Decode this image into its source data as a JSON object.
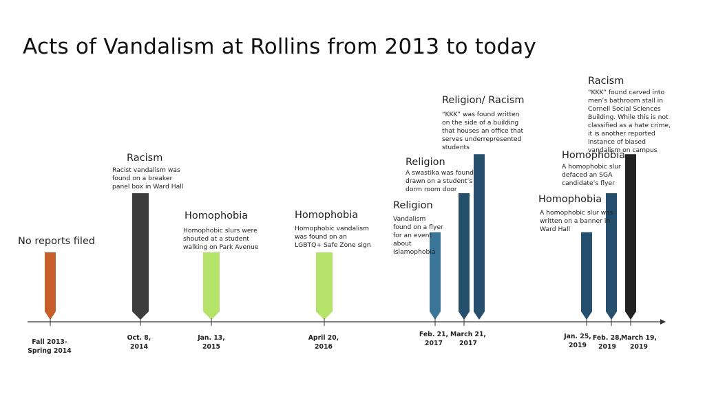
{
  "slide": {
    "title": "Acts of Vandalism at Rollins from 2013 to today"
  },
  "colors": {
    "orange": "#c85f2a",
    "dark_gray": "#3d3d3d",
    "light_green": "#b6e36a",
    "steel_blue": "#3b7597",
    "navy_blue": "#254f6d",
    "black": "#222222",
    "axis": "#333333"
  },
  "events": [
    {
      "date": "Fall 2013-\nSpring 2014",
      "category": "No reports filed",
      "description": "",
      "color": "orange",
      "level": 0.5
    },
    {
      "date": "Oct. 8,\n2014",
      "category": "Racism",
      "description": "Racist vandalism was found on a breaker panel box in Ward Hall",
      "color": "dark_gray",
      "level": 1.0
    },
    {
      "date": "Jan. 13,\n2015",
      "category": "Homophobia",
      "description": "Homophobic slurs were shouted at a student walking on Park Avenue",
      "color": "light_green",
      "level": 0.5
    },
    {
      "date": "April 20,\n2016",
      "category": "Homophobia",
      "description": "Homophobic vandalism was found on an LGBTQ+ Safe Zone sign",
      "color": "light_green",
      "level": 0.5
    },
    {
      "date": "Feb. 21,\n2017",
      "category": "Religion",
      "description": "Vandalism found on a flyer for an event about Islamophobia",
      "color": "steel_blue",
      "level": 0.67
    },
    {
      "date": "March 21,\n2017",
      "category": "Religion",
      "description": "A swastika was found drawn on a student’s dorm room door",
      "color": "navy_blue",
      "level": 1.0
    },
    {
      "date": "",
      "category": "Religion/ Racism",
      "description": "“KKK” was found written on the side of a building that houses an office that serves underrepresented students",
      "color": "navy_blue",
      "level": 1.33
    },
    {
      "date": "Jan. 25,\n2019",
      "category": "Homophobia",
      "description": "A homophobic slur was written on a banner in Ward Hall",
      "color": "navy_blue",
      "level": 0.67
    },
    {
      "date": "Feb. 28,\n2019",
      "category": "Homophobia",
      "description": "A homophobic slur defaced an SGA candidate’s flyer",
      "color": "navy_blue",
      "level": 1.0
    },
    {
      "date": "March 19,\n2019",
      "category": "Racism",
      "description": "“KKK” found carved into men’s bathroom stall in Cornell Social Sciences Building. While this is not classified as a hate crime, it is another reported instance of biased vandalism on campus",
      "color": "black",
      "level": 1.33
    }
  ]
}
